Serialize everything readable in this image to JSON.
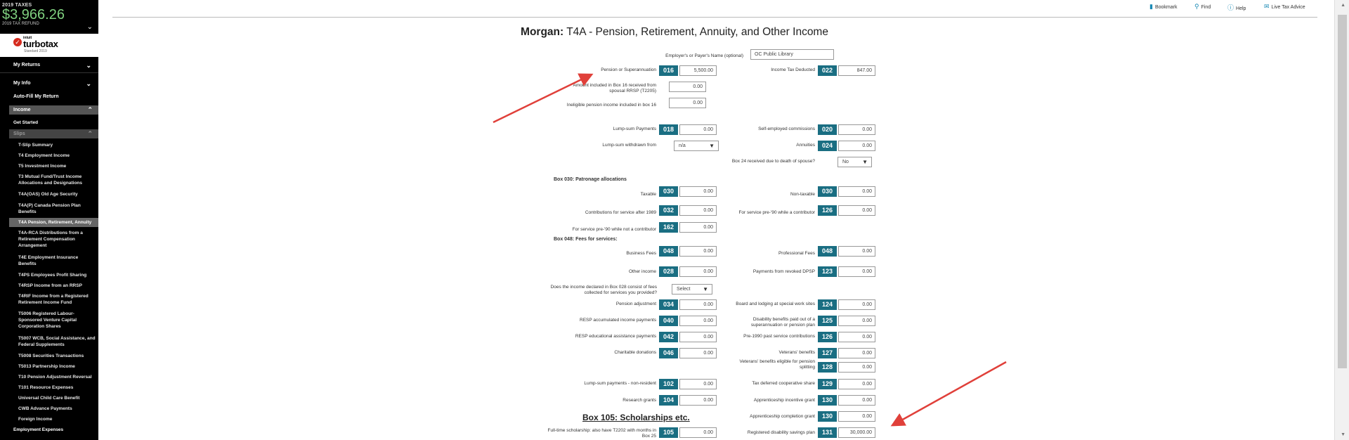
{
  "sidebar": {
    "tax_year": "2019 TAXES",
    "refund_amount": "$3,966.26",
    "refund_label": "2019 TAX REFUND",
    "brand_intuit": "intuit",
    "brand_name": "turbotax",
    "brand_edition": "Standard 2019",
    "my_returns": "My Returns",
    "my_info": "My Info",
    "auto_fill": "Auto-Fill My Return",
    "income": "Income",
    "get_started": "Get Started",
    "slips": "Slips",
    "items": [
      "T-Slip Summary",
      "T4 Employment Income",
      "T5 Investment Income",
      "T3 Mutual Fund/Trust Income Allocations and Designations",
      "T4A(OAS) Old Age Security",
      "T4A(P) Canada Pension Plan Benefits",
      "T4A Pension, Retirement, Annuity",
      "T4A-RCA Distributions from a Retirement Compensation Arrangement",
      "T4E Employment Insurance Benefits",
      "T4PS Employees Profit Sharing",
      "T4RSP Income from an RRSP",
      "T4RIF Income from a Registered Retirement Income Fund",
      "T5006 Registered Labour-Sponsored Venture Capital Corporation Shares",
      "T5007 WCB, Social Assistance, and Federal Supplements",
      "T5008 Securities Transactions",
      "T5013 Partnership Income",
      "T10 Pension Adjustment Reversal",
      "T101 Resource Expenses",
      "Universal Child Care Benefit",
      "CWB Advance Payments",
      "Foreign Income"
    ],
    "employment_expenses": "Employment Expenses"
  },
  "toolbar": {
    "bookmark": "Bookmark",
    "find": "Find",
    "help": "Help",
    "live_tax_advice": "Live Tax Advice"
  },
  "form": {
    "title_name": "Morgan:",
    "title_rest": "T4A - Pension, Retirement, Annuity, and Other Income",
    "payer_label": "Employer's or Payer's Name (optional)",
    "payer_value": "OC Public Library",
    "fields": {
      "pension_label": "Pension or Superannuation",
      "pension_box": "016",
      "pension_value": "5,500.00",
      "itd_label": "Income Tax Deducted",
      "itd_box": "022",
      "itd_value": "847.00",
      "spousal_label": "Amount included in Box 16 received from spousal RRSP (T2205)",
      "spousal_value": "0.00",
      "inelig_label": "Ineligible pension income included in box 16",
      "inelig_value": "0.00",
      "lump_label": "Lump-sum Payments",
      "lump_box": "018",
      "lump_value": "0.00",
      "selfemp_label": "Self-employed commissions",
      "selfemp_box": "020",
      "selfemp_value": "0.00",
      "lumpfrom_label": "Lump-sum withdrawn from",
      "lumpfrom_value": "n/a",
      "annuities_label": "Annuities",
      "annuities_box": "024",
      "annuities_value": "0.00",
      "box24_label": "Box 24 received due to death of spouse?",
      "box24_value": "No",
      "patronage_head": "Box 030: Patronage allocations",
      "taxable_label": "Taxable",
      "taxable_box": "030",
      "taxable_value": "0.00",
      "nontaxable_label": "Non-taxable",
      "nontaxable_box": "030",
      "nontaxable_value": "0.00",
      "contrib_label": "Contributions for service after 1989",
      "contrib_box": "032",
      "contrib_value": "0.00",
      "pre90c_label": "For service pre-'90 while a contributor",
      "pre90c_box": "126",
      "pre90c_value": "0.00",
      "pre90n_label": "For service pre-'90 while not a contributor",
      "pre90n_box": "162",
      "pre90n_value": "0.00",
      "fees_head": "Box 048: Fees for services:",
      "business_label": "Business Fees",
      "business_box": "048",
      "business_value": "0.00",
      "prof_label": "Professional Fees",
      "prof_box": "048",
      "prof_value": "0.00",
      "other_label": "Other income",
      "other_box": "028",
      "other_value": "0.00",
      "dpsp_label": "Payments from revoked DPSP",
      "dpsp_box": "123",
      "dpsp_value": "0.00",
      "box28q_label": "Does the income declared in Box 028 consist of fees collected for services you provided?",
      "box28q_value": "Select",
      "pa_label": "Pension adjustment",
      "pa_box": "034",
      "pa_value": "0.00",
      "board_label": "Board and lodging at special work sites",
      "board_box": "124",
      "board_value": "0.00",
      "resp_label": "RESP accumulated income payments",
      "resp_box": "040",
      "resp_value": "0.00",
      "disab_label": "Disability benefits paid out of a superannuation or pension plan",
      "disab_box": "125",
      "disab_value": "0.00",
      "respeap_label": "RESP educational assistance payments",
      "respeap_box": "042",
      "respeap_value": "0.00",
      "pre1990_label": "Pre-1990 past service contributions",
      "pre1990_box": "126",
      "pre1990_value": "0.00",
      "charit_label": "Charitable donations",
      "charit_box": "046",
      "charit_value": "0.00",
      "vet_label": "Veterans' benefits",
      "vet_box": "127",
      "vet_value": "0.00",
      "vetsplit_label": "Veterans' benefits eligible for pension splitting",
      "vetsplit_box": "128",
      "vetsplit_value": "0.00",
      "lumpnr_label": "Lump-sum payments - non-resident",
      "lumpnr_box": "102",
      "lumpnr_value": "0.00",
      "taxdef_label": "Tax deferred cooperative share",
      "taxdef_box": "129",
      "taxdef_value": "0.00",
      "research_label": "Research grants",
      "research_box": "104",
      "research_value": "0.00",
      "appinc_label": "Apprenticeship incentive grant",
      "appinc_box": "130",
      "appinc_value": "0.00",
      "appcomp_label": "Apprenticeship completion grant",
      "appcomp_box": "130",
      "appcomp_value": "0.00",
      "box105_head": "Box 105: Scholarships etc.",
      "fulltime_label": "Full-time scholarship: also have T2202 with months in Box 25",
      "fulltime_box": "105",
      "fulltime_value": "0.00",
      "rdsp_label": "Registered disability savings plan",
      "rdsp_box": "131",
      "rdsp_value": "30,000.00"
    }
  },
  "colors": {
    "box_teal": "#1a6e82",
    "arrow_red": "#e0403a",
    "refund_green": "#7fd07f"
  }
}
